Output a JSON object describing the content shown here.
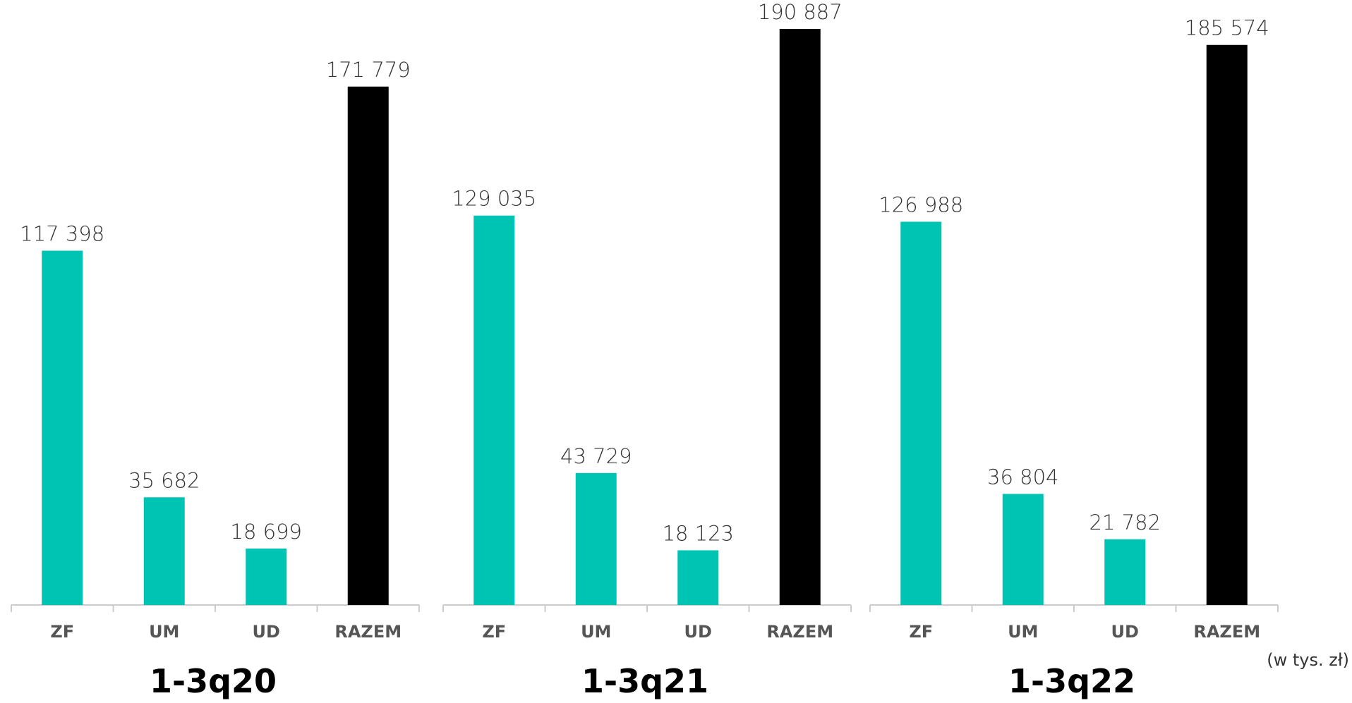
{
  "chart_data": {
    "type": "bar",
    "unit_note": "(w tys. zł)",
    "colors": {
      "segment": "#00c4b3",
      "total": "#000000",
      "axis": "#cccccc"
    },
    "ylim": [
      0,
      200000
    ],
    "grid": false,
    "groups": [
      {
        "label": "1-3q20",
        "categories": [
          "ZF",
          "UM",
          "UD",
          "RAZEM"
        ],
        "values": [
          117398,
          35682,
          18699,
          171779
        ],
        "value_labels": [
          "117 398",
          "35 682",
          "18 699",
          "171 779"
        ]
      },
      {
        "label": "1-3q21",
        "categories": [
          "ZF",
          "UM",
          "UD",
          "RAZEM"
        ],
        "values": [
          129035,
          43729,
          18123,
          190887
        ],
        "value_labels": [
          "129 035",
          "43 729",
          "18 123",
          "190 887"
        ]
      },
      {
        "label": "1-3q22",
        "categories": [
          "ZF",
          "UM",
          "UD",
          "RAZEM"
        ],
        "values": [
          126988,
          36804,
          21782,
          185574
        ],
        "value_labels": [
          "126 988",
          "36 804",
          "21 782",
          "185 574"
        ]
      }
    ]
  }
}
